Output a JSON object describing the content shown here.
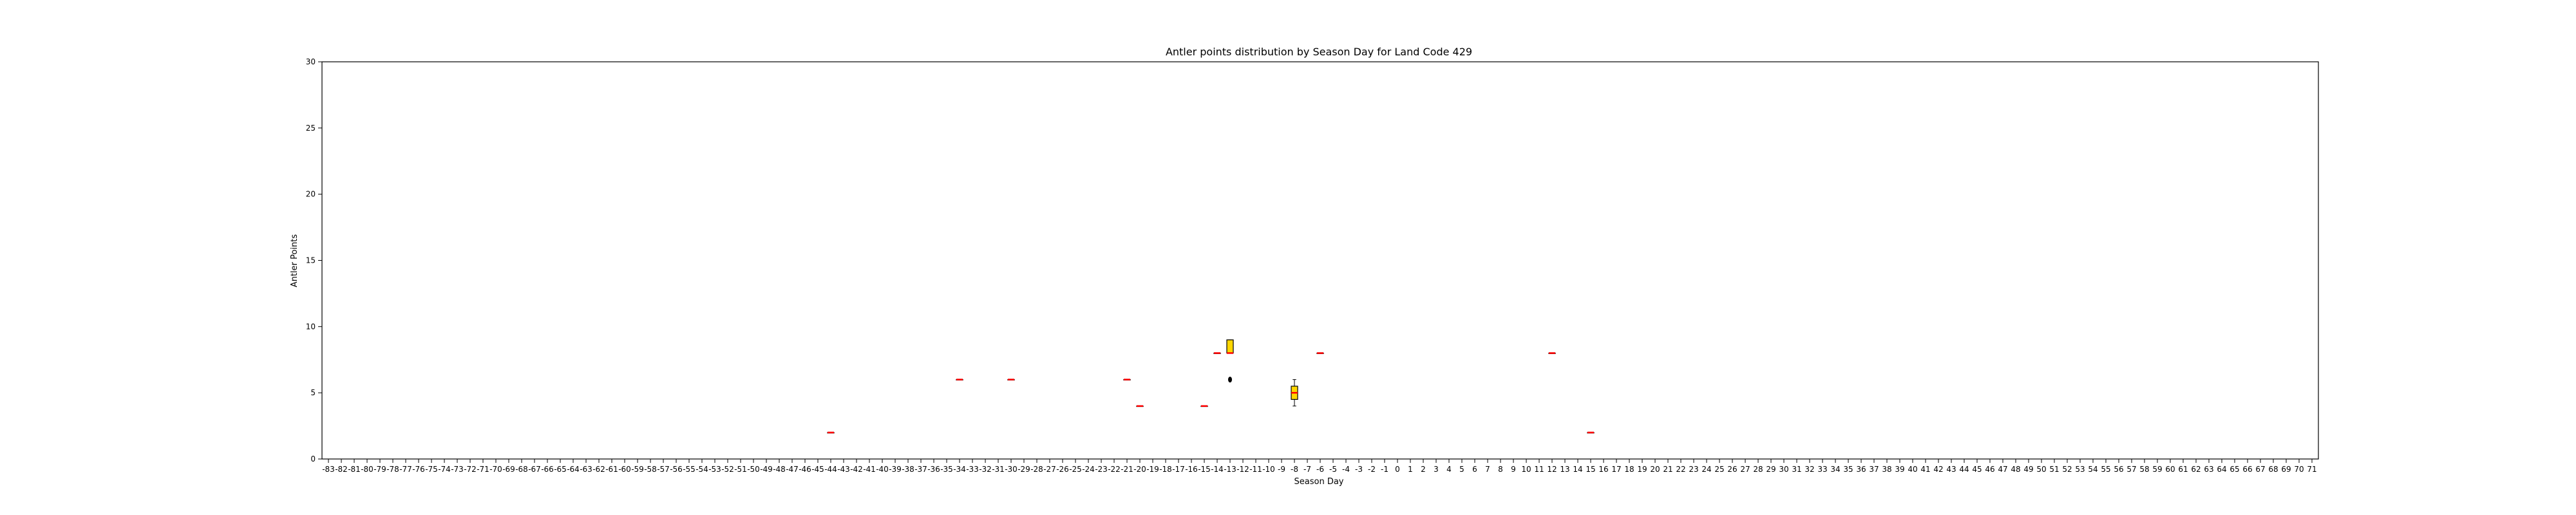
{
  "chart_data": {
    "type": "box",
    "title": "Antler points distribution by Season Day for Land Code 429",
    "xlabel": "Season Day",
    "ylabel": "Antler Points",
    "ylim": [
      0,
      30
    ],
    "y_ticks": [
      0,
      5,
      10,
      15,
      20,
      25,
      30
    ],
    "x_categories_range": [
      -83,
      71
    ],
    "grid": false,
    "legend": "none",
    "colors": {
      "box_fill": "#ffd700",
      "box_edge": "#000000",
      "median": "#ff0000",
      "outlier": "#000000"
    },
    "boxes": [
      {
        "day": -44,
        "min": 2,
        "q1": 2,
        "median": 2,
        "q3": 2,
        "max": 2,
        "outliers": []
      },
      {
        "day": -34,
        "min": 6,
        "q1": 6,
        "median": 6,
        "q3": 6,
        "max": 6,
        "outliers": []
      },
      {
        "day": -30,
        "min": 6,
        "q1": 6,
        "median": 6,
        "q3": 6,
        "max": 6,
        "outliers": []
      },
      {
        "day": -21,
        "min": 6,
        "q1": 6,
        "median": 6,
        "q3": 6,
        "max": 6,
        "outliers": []
      },
      {
        "day": -20,
        "min": 4,
        "q1": 4,
        "median": 4,
        "q3": 4,
        "max": 4,
        "outliers": []
      },
      {
        "day": -15,
        "min": 4,
        "q1": 4,
        "median": 4,
        "q3": 4,
        "max": 4,
        "outliers": []
      },
      {
        "day": -14,
        "min": 8,
        "q1": 8,
        "median": 8,
        "q3": 8,
        "max": 8,
        "outliers": []
      },
      {
        "day": -13,
        "min": 8,
        "q1": 8,
        "median": 8,
        "q3": 9,
        "max": 9,
        "outliers": [
          6
        ]
      },
      {
        "day": -8,
        "min": 4,
        "q1": 4.5,
        "median": 5,
        "q3": 5.5,
        "max": 6,
        "outliers": []
      },
      {
        "day": -6,
        "min": 8,
        "q1": 8,
        "median": 8,
        "q3": 8,
        "max": 8,
        "outliers": []
      },
      {
        "day": 12,
        "min": 8,
        "q1": 8,
        "median": 8,
        "q3": 8,
        "max": 8,
        "outliers": []
      },
      {
        "day": 15,
        "min": 2,
        "q1": 2,
        "median": 2,
        "q3": 2,
        "max": 2,
        "outliers": []
      }
    ]
  }
}
